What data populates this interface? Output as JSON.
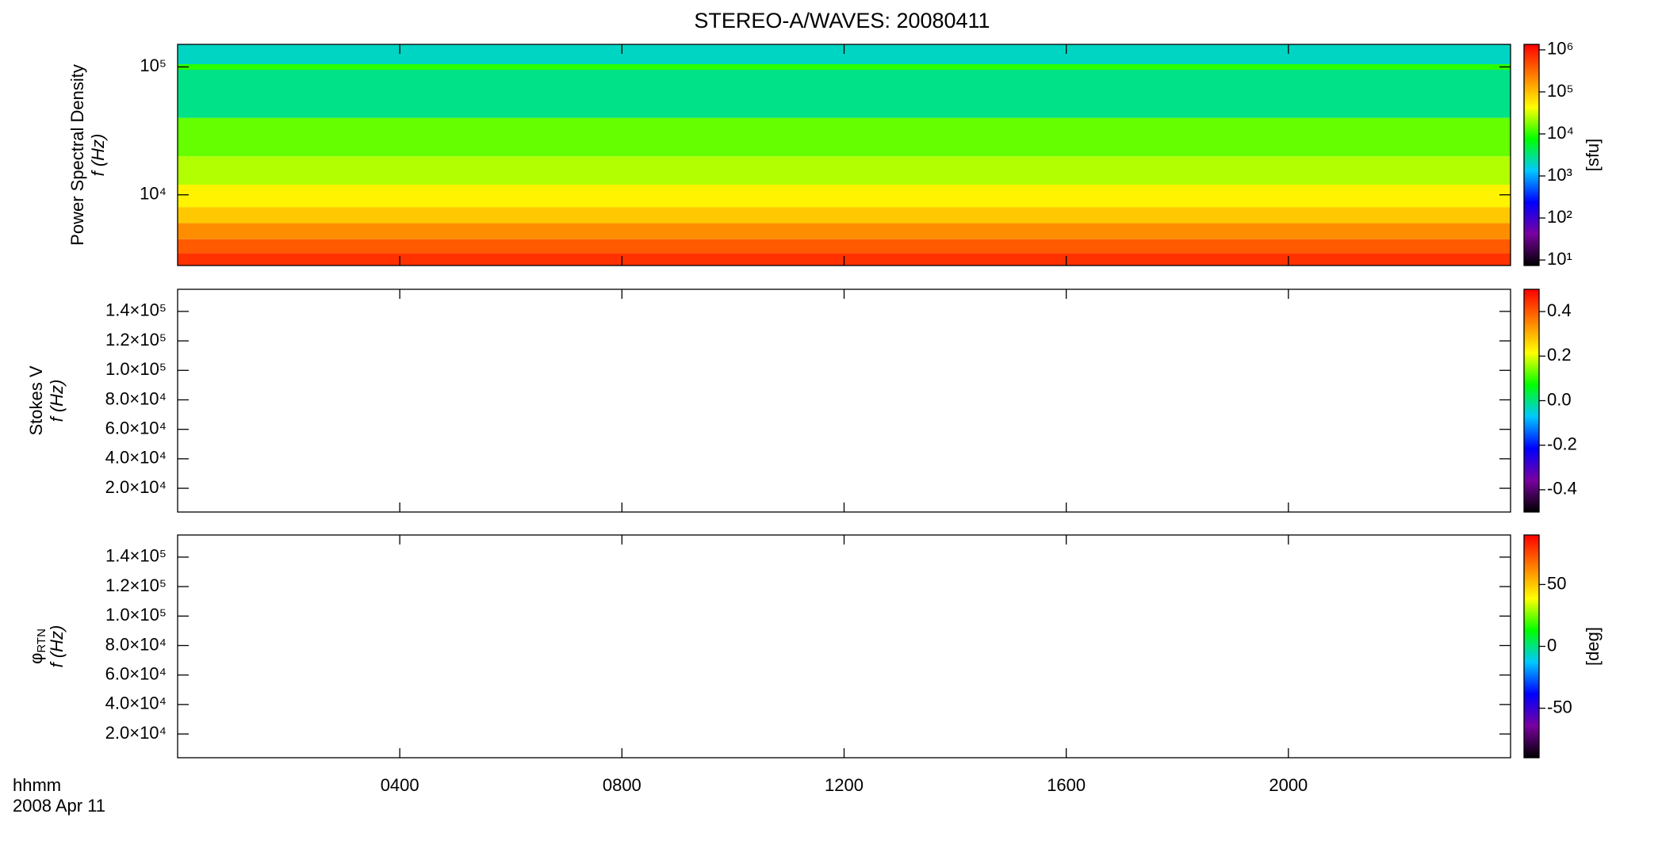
{
  "chart_data": [
    {
      "type": "spectrogram",
      "title": "STEREO-A/WAVES: 20080411",
      "ylabel": "Power Spectral Density",
      "ylabel2": "f (Hz)",
      "ylog": true,
      "ylim": [
        2800,
        150000
      ],
      "yticks": [
        {
          "value": 10000,
          "label": "10⁴"
        },
        {
          "value": 100000,
          "label": "10⁵"
        }
      ],
      "colorbar": {
        "label": "[sfu]",
        "log": true,
        "lim": [
          7.4,
          1350000
        ],
        "ticks": [
          {
            "value": 10,
            "label": "10¹"
          },
          {
            "value": 100,
            "label": "10²"
          },
          {
            "value": 1000,
            "label": "10³"
          },
          {
            "value": 10000,
            "label": "10⁴"
          },
          {
            "value": 100000,
            "label": "10⁵"
          },
          {
            "value": 1000000,
            "label": "10⁶"
          }
        ]
      },
      "colormap": [
        "#000000",
        "#7a00a0",
        "#0000ff",
        "#00c8ff",
        "#00ff00",
        "#ffff00",
        "#ff8000",
        "#ff0000"
      ],
      "spectrogram": {
        "bins": [
          2800,
          3500,
          4500,
          6000,
          8000,
          12000,
          20000,
          40000,
          95000,
          105000,
          150000
        ],
        "values": [
          700000,
          400000,
          200000,
          90000,
          50000,
          25000,
          15000,
          3000,
          10000,
          2000
        ]
      }
    },
    {
      "type": "spectrogram",
      "ylabel": "Stokes V",
      "ylabel2": "f (Hz)",
      "ylog": false,
      "ylim": [
        3900,
        155000
      ],
      "yticks": [
        {
          "value": 20000,
          "label": "2.0×10⁴"
        },
        {
          "value": 40000,
          "label": "4.0×10⁴"
        },
        {
          "value": 60000,
          "label": "6.0×10⁴"
        },
        {
          "value": 80000,
          "label": "8.0×10⁴"
        },
        {
          "value": 100000,
          "label": "1.0×10⁵"
        },
        {
          "value": 120000,
          "label": "1.2×10⁵"
        },
        {
          "value": 140000,
          "label": "1.4×10⁵"
        }
      ],
      "colorbar": {
        "log": false,
        "lim": [
          -0.5,
          0.5
        ],
        "ticks": [
          -0.4,
          -0.2,
          {
            "value": 0,
            "label": "0.0"
          },
          0.2,
          0.4
        ]
      },
      "colormap": [
        "#000000",
        "#7a00a0",
        "#0000ff",
        "#00c8ff",
        "#00ff00",
        "#ffff00",
        "#ff8000",
        "#ff0000"
      ]
    },
    {
      "type": "spectrogram",
      "ylabel_symbol": "φ",
      "ylabel_sub": "RTN",
      "ylabel2": "f (Hz)",
      "ylog": false,
      "ylim": [
        3900,
        155000
      ],
      "yticks": [
        {
          "value": 20000,
          "label": "2.0×10⁴"
        },
        {
          "value": 40000,
          "label": "4.0×10⁴"
        },
        {
          "value": 60000,
          "label": "6.0×10⁴"
        },
        {
          "value": 80000,
          "label": "8.0×10⁴"
        },
        {
          "value": 100000,
          "label": "1.0×10⁵"
        },
        {
          "value": 120000,
          "label": "1.2×10⁵"
        },
        {
          "value": 140000,
          "label": "1.4×10⁵"
        }
      ],
      "colorbar": {
        "label": "[deg]",
        "log": false,
        "lim": [
          -90,
          90
        ],
        "ticks": [
          -50,
          0,
          50
        ]
      },
      "colormap": [
        "#000000",
        "#7a00a0",
        "#0000ff",
        "#00c8ff",
        "#00ff00",
        "#ffff00",
        "#ff8000",
        "#ff0000"
      ],
      "xlim": [
        0,
        24
      ],
      "xticks": [
        {
          "value": 4,
          "label": "0400"
        },
        {
          "value": 8,
          "label": "0800"
        },
        {
          "value": 12,
          "label": "1200"
        },
        {
          "value": 16,
          "label": "1600"
        },
        {
          "value": 20,
          "label": "2000"
        }
      ],
      "xlabel": "hhmm",
      "xlabel2": "2008 Apr 11"
    }
  ]
}
